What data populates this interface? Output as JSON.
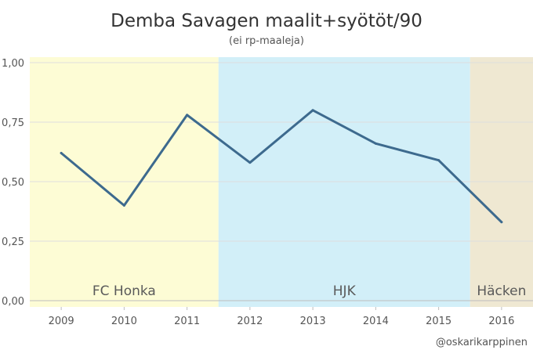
{
  "chart_data": {
    "type": "line",
    "title": "Demba Savagen maalit+syötöt/90",
    "subtitle": "(ei rp-maaleja)",
    "xlabel": "",
    "ylabel": "",
    "categories": [
      "2009",
      "2010",
      "2011",
      "2012",
      "2013",
      "2014",
      "2015",
      "2016"
    ],
    "values": [
      0.62,
      0.4,
      0.78,
      0.58,
      0.8,
      0.66,
      0.59,
      0.33
    ],
    "ylim": [
      0,
      1
    ],
    "yticks": [
      "0,00",
      "0,25",
      "0,50",
      "0,75",
      "1,00"
    ],
    "grid": true,
    "line_color": "#3d6a8e",
    "bands": [
      {
        "label": "FC Honka",
        "from": "2009",
        "to": "2011",
        "color": "#fdfcd5"
      },
      {
        "label": "HJK",
        "from": "2012",
        "to": "2015",
        "color": "#d2eff8"
      },
      {
        "label": "Häcken",
        "from": "2016",
        "to": "2016",
        "color": "#efe8d2"
      }
    ],
    "credit": "@oskarikarppinen"
  }
}
